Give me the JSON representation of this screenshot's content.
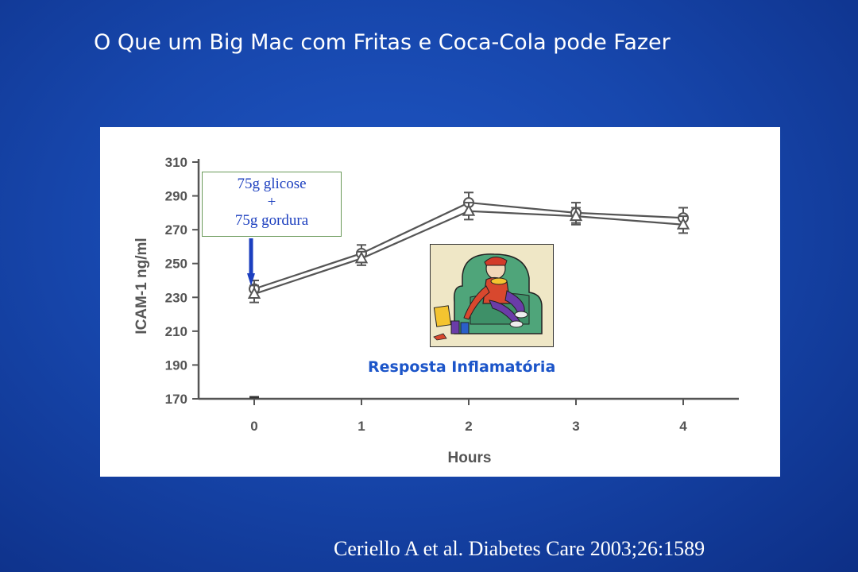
{
  "slide": {
    "title": "O Que um Big Mac com Fritas e Coca-Cola pode Fazer",
    "citation": "Ceriello A et al. Diabetes Care 2003;26:1589"
  },
  "callout": {
    "line1": "75g glicose",
    "line2": "+",
    "line3": "75g gordura"
  },
  "image_label": "Resposta Inflamatória",
  "colors": {
    "background": "#1747ad",
    "arrow": "#1c3fbf",
    "label": "#1c55c9",
    "line": "#555555"
  },
  "chart_data": {
    "type": "line",
    "xlabel": "Hours",
    "ylabel": "ICAM-1 ng/ml",
    "x": [
      0,
      1,
      2,
      3,
      4
    ],
    "xticks": [
      "0",
      "1",
      "2",
      "3",
      "4"
    ],
    "yticks": [
      170,
      190,
      210,
      230,
      250,
      270,
      290,
      310
    ],
    "xlim": [
      0,
      4
    ],
    "ylim": [
      170,
      310
    ],
    "grid": false,
    "series": [
      {
        "marker": "circle",
        "values": [
          235,
          256,
          286,
          280,
          277
        ],
        "errors": [
          5,
          5,
          6,
          6,
          6
        ]
      },
      {
        "marker": "triangle",
        "values": [
          232,
          253,
          281,
          278,
          273
        ],
        "errors": [
          5,
          4,
          5,
          5,
          5
        ]
      }
    ]
  }
}
